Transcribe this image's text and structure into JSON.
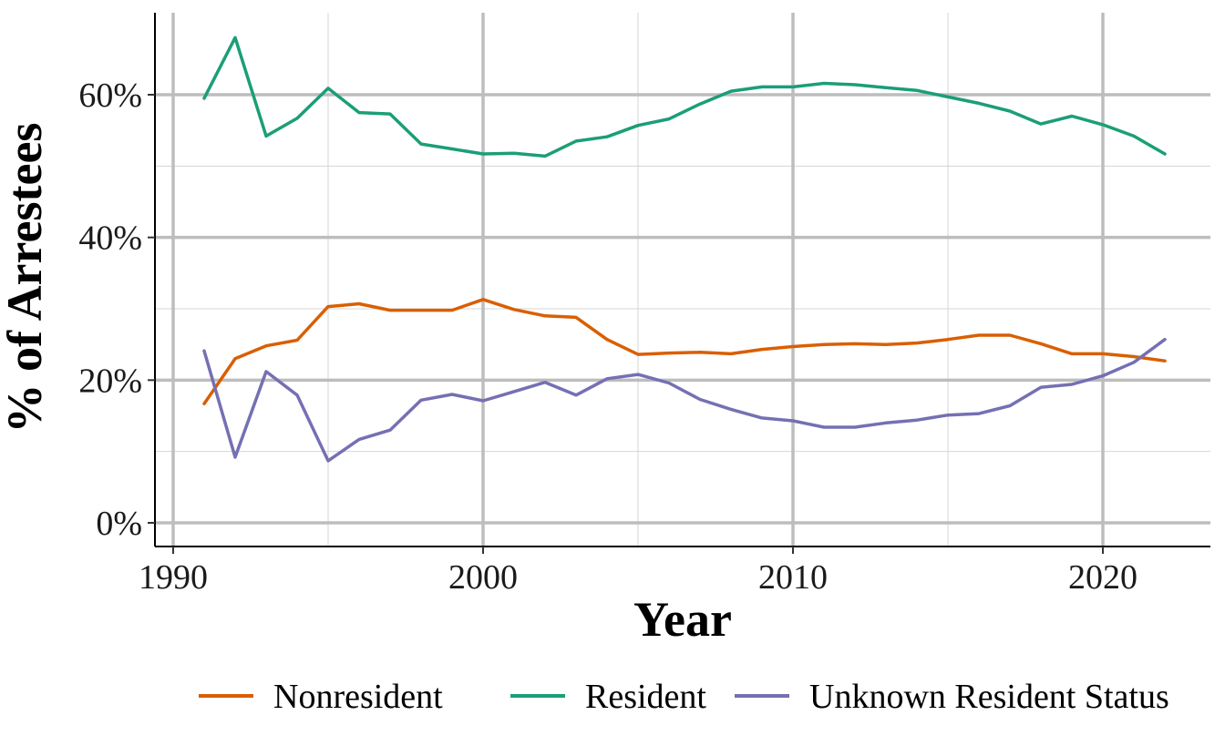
{
  "chart_data": {
    "type": "line",
    "title": "",
    "xlabel": "Year",
    "ylabel": "% of Arrestees",
    "xlim": [
      1990,
      2023
    ],
    "ylim": [
      0,
      70
    ],
    "x_ticks": [
      1990,
      2000,
      2010,
      2020
    ],
    "y_ticks": [
      0,
      20,
      40,
      60
    ],
    "y_tick_labels": [
      "0%",
      "20%",
      "40%",
      "60%"
    ],
    "grid": true,
    "legend_position": "bottom",
    "x": [
      1991,
      1992,
      1993,
      1994,
      1995,
      1996,
      1997,
      1998,
      1999,
      2000,
      2001,
      2002,
      2003,
      2004,
      2005,
      2006,
      2007,
      2008,
      2009,
      2010,
      2011,
      2012,
      2013,
      2014,
      2015,
      2016,
      2017,
      2018,
      2019,
      2020,
      2021,
      2022
    ],
    "series": [
      {
        "name": "Nonresident",
        "color": "#D95F02",
        "values": [
          16.7,
          23.0,
          24.8,
          25.6,
          30.3,
          30.7,
          29.8,
          29.8,
          29.8,
          31.3,
          29.9,
          29.0,
          28.8,
          25.7,
          23.6,
          23.8,
          23.9,
          23.7,
          24.3,
          24.7,
          25.0,
          25.1,
          25.0,
          25.2,
          25.7,
          26.3,
          26.3,
          25.1,
          23.7,
          23.7,
          23.3,
          22.7
        ]
      },
      {
        "name": "Resident",
        "color": "#1B9E77",
        "values": [
          59.5,
          68.0,
          54.2,
          56.7,
          60.9,
          57.5,
          57.3,
          53.1,
          52.4,
          51.7,
          51.8,
          51.4,
          53.5,
          54.1,
          55.7,
          56.6,
          58.7,
          60.5,
          61.1,
          61.1,
          61.6,
          61.4,
          61.0,
          60.6,
          59.7,
          58.8,
          57.7,
          55.9,
          57.0,
          55.8,
          54.2,
          51.7
        ]
      },
      {
        "name": "Unknown Resident Status",
        "color": "#7570B3",
        "values": [
          24.1,
          9.2,
          21.2,
          17.9,
          8.7,
          11.7,
          13.0,
          17.2,
          18.0,
          17.1,
          18.4,
          19.7,
          17.9,
          20.2,
          20.8,
          19.6,
          17.3,
          15.9,
          14.7,
          14.3,
          13.4,
          13.4,
          14.0,
          14.4,
          15.1,
          15.3,
          16.4,
          19.0,
          19.4,
          20.6,
          22.5,
          25.7
        ]
      }
    ]
  }
}
